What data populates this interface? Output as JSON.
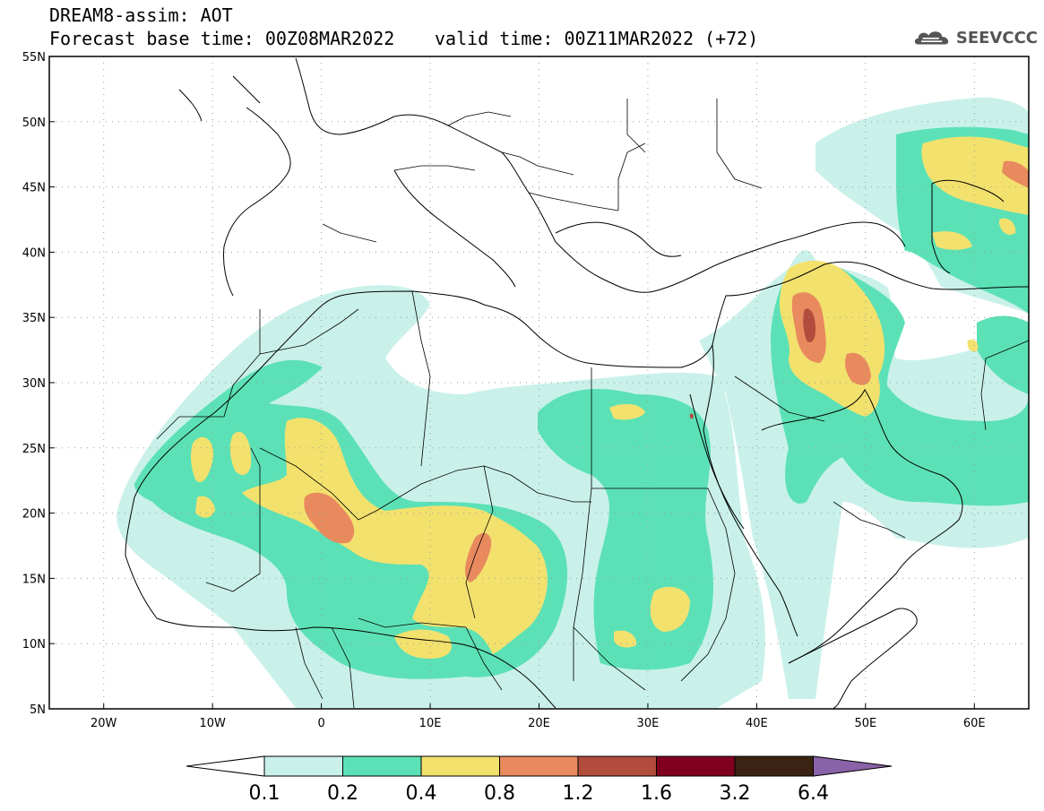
{
  "header": {
    "title": "DREAM8-assim: AOT",
    "base_time": "Forecast base time: 00Z08MAR2022",
    "valid_time": "valid time: 00Z11MAR2022 (+72)",
    "logo_text": "SEEVCCC",
    "logo_icon": "cloud-logo-icon"
  },
  "map": {
    "lon_labels": [
      "20W",
      "10W",
      "0",
      "10E",
      "20E",
      "30E",
      "40E",
      "50E",
      "60E"
    ],
    "lat_labels": [
      "55N",
      "50N",
      "45N",
      "40N",
      "35N",
      "30N",
      "25N",
      "20N",
      "15N",
      "10N",
      "5N"
    ],
    "lon_range": [
      -25,
      65
    ],
    "lat_range": [
      5,
      55
    ],
    "grid": "dotted"
  },
  "legend": {
    "labels": [
      "0.1",
      "0.2",
      "0.4",
      "0.8",
      "1.2",
      "1.6",
      "3.2",
      "6.4"
    ],
    "colors": [
      "#ffffff",
      "#c9f1ea",
      "#5ce1b6",
      "#f3e16e",
      "#e88a5e",
      "#b24c3c",
      "#800020",
      "#3a2313",
      "#8a62a8"
    ]
  }
}
